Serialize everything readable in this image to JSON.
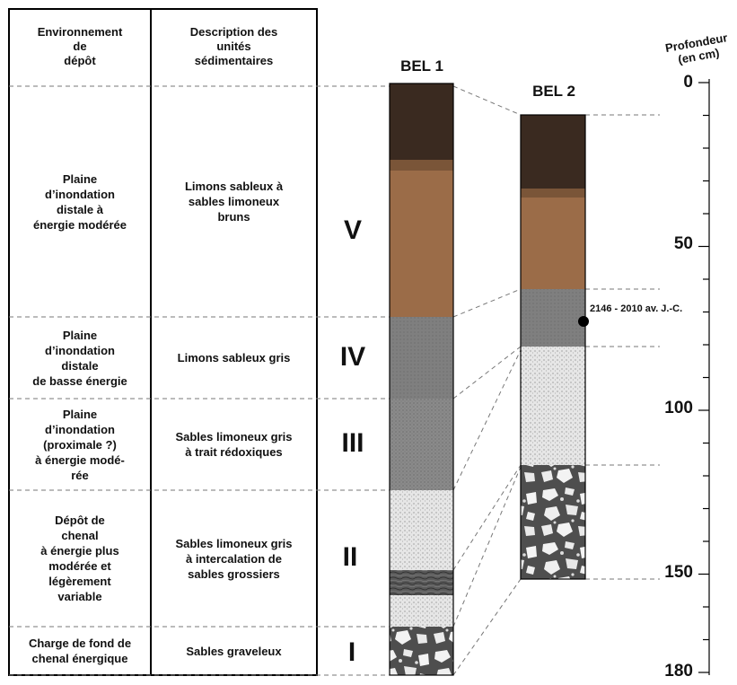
{
  "headers": {
    "env": "Environnement\nde\ndépôt",
    "desc": "Description des\nunités\nsédimentaires"
  },
  "units": [
    {
      "roman": "V",
      "env": "Plaine\nd’inondation\ndistale à\nénergie modérée",
      "desc": "Limons sableux à\nsables limoneux\nbruns"
    },
    {
      "roman": "IV",
      "env": "Plaine\nd’inondation\ndistale\nde basse énergie",
      "desc": "Limons sableux gris"
    },
    {
      "roman": "III",
      "env": "Plaine\nd’inondation\n(proximale ?)\nà énergie modé-\nrée",
      "desc": "Sables limoneux gris\nà trait rédoxiques"
    },
    {
      "roman": "II",
      "env": "Dépôt de\nchenal\nà énergie plus\nmodérée et\nlégèrement\nvariable",
      "desc": "Sables limoneux gris\nà intercalation de\nsables grossiers"
    },
    {
      "roman": "I",
      "env": "Charge de fond de\nchenal énergique",
      "desc": "Sables graveleux"
    }
  ],
  "columns": {
    "bel1": "BEL 1",
    "bel2": "BEL 2"
  },
  "axis": {
    "title": "Profondeur\n(en cm)",
    "ticks": [
      "0",
      "50",
      "100",
      "150",
      "180"
    ],
    "range_cm": [
      0,
      180
    ],
    "minor_step_cm": 10
  },
  "date_label": "2146 - 2010 av. J.-C.",
  "colors": {
    "dark_brown": "#3a2a20",
    "brown": "#9b6c48",
    "grey_dark": "#808080",
    "grey_mid": "#8a8a8a",
    "sand_light": "#e4e4e4",
    "sand_dark": "#555555",
    "gravel_bg": "#5a5a5a"
  }
}
